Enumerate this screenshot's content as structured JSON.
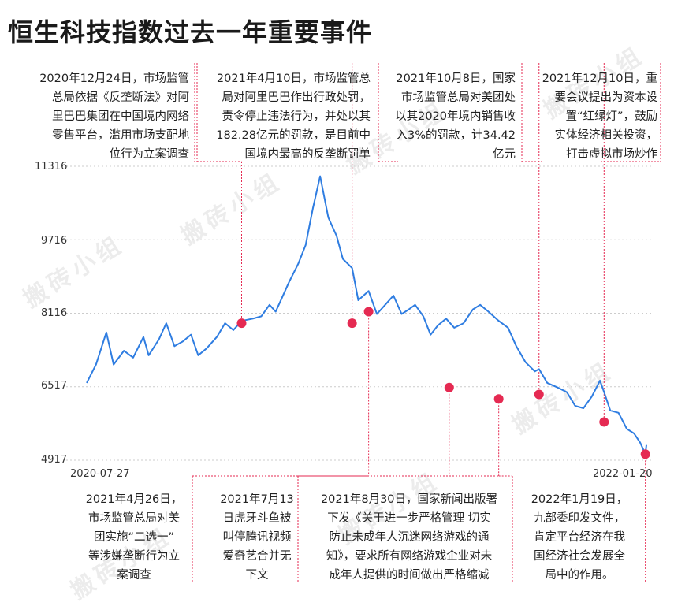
{
  "title": "恒生科技指数过去一年重要事件",
  "watermark": "搬砖小组",
  "colors": {
    "line": "#2f7de1",
    "marker": "#e52a52",
    "guide": "#e52a52",
    "grid": "#cccccc",
    "text": "#222222"
  },
  "chart_data": {
    "type": "line",
    "title": "恒生科技指数过去一年重要事件",
    "x_start": "2020-07-27",
    "x_end": "2022-01-20",
    "y_ticks": [
      4917,
      6517,
      8116,
      9716,
      11316
    ],
    "ylim": [
      4917,
      11316
    ],
    "x_tick_labels": [
      "2020-07-27",
      "2022-01-20"
    ],
    "series": [
      {
        "dates": [
          "2020-07-27",
          "2020-08-05",
          "2020-08-15",
          "2020-08-22",
          "2020-09-01",
          "2020-09-10",
          "2020-09-20",
          "2020-09-25",
          "2020-10-05",
          "2020-10-12",
          "2020-10-20",
          "2020-10-28",
          "2020-11-05",
          "2020-11-12",
          "2020-11-20",
          "2020-11-30",
          "2020-12-08",
          "2020-12-16",
          "2020-12-24",
          "2021-01-04",
          "2021-01-12",
          "2021-01-20",
          "2021-01-26",
          "2021-02-01",
          "2021-02-08",
          "2021-02-17",
          "2021-02-24",
          "2021-03-03",
          "2021-03-10",
          "2021-03-18",
          "2021-03-26",
          "2021-04-01",
          "2021-04-10",
          "2021-04-16",
          "2021-04-26",
          "2021-05-04",
          "2021-05-12",
          "2021-05-20",
          "2021-05-28",
          "2021-06-04",
          "2021-06-10",
          "2021-06-18",
          "2021-06-25",
          "2021-07-02",
          "2021-07-10",
          "2021-07-18",
          "2021-07-27",
          "2021-08-05",
          "2021-08-12",
          "2021-08-20",
          "2021-08-30",
          "2021-09-08",
          "2021-09-16",
          "2021-09-25",
          "2021-10-04",
          "2021-10-08",
          "2021-10-16",
          "2021-10-26",
          "2021-11-04",
          "2021-11-12",
          "2021-11-20",
          "2021-11-28",
          "2021-12-06",
          "2021-12-10",
          "2021-12-16",
          "2021-12-24",
          "2022-01-01",
          "2022-01-08",
          "2022-01-14",
          "2022-01-19",
          "2022-01-20"
        ],
        "values": [
          6600,
          7000,
          7700,
          7000,
          7300,
          7150,
          7600,
          7200,
          7550,
          7900,
          7400,
          7500,
          7650,
          7200,
          7350,
          7600,
          7900,
          7750,
          7950,
          8000,
          8050,
          8300,
          8150,
          8450,
          8800,
          9200,
          9600,
          10400,
          11100,
          10200,
          9800,
          9300,
          9100,
          8400,
          8600,
          8100,
          8300,
          8500,
          8100,
          8200,
          8300,
          8050,
          7650,
          7850,
          8000,
          7800,
          7900,
          8200,
          8300,
          8150,
          7950,
          7800,
          7400,
          7050,
          6850,
          6900,
          6600,
          6500,
          6400,
          6100,
          6050,
          6300,
          6650,
          6400,
          6000,
          5950,
          5600,
          5500,
          5300,
          5050,
          5250
        ]
      }
    ],
    "markers": [
      {
        "date": "2020-12-24",
        "value": 7900
      },
      {
        "date": "2021-04-10",
        "value": 7900
      },
      {
        "date": "2021-04-26",
        "value": 8150
      },
      {
        "date": "2021-07-13",
        "value": 6500
      },
      {
        "date": "2021-08-30",
        "value": 6250
      },
      {
        "date": "2021-10-08",
        "value": 6350
      },
      {
        "date": "2021-12-10",
        "value": 5750
      },
      {
        "date": "2022-01-19",
        "value": 5050
      }
    ]
  },
  "annotations_top": [
    {
      "text": "2020年12月24日，市场监管\n总局依据《反垄断法》对阿\n里巴巴集团在中国境内网络\n零售平台，滥用市场支配地\n位行为立案调查"
    },
    {
      "text": "2021年4月10日，市场监管总\n局对阿里巴巴作出行政处罚，\n责令停止违法行为，并处以其\n182.28亿元的罚款，是目前中\n国境内最高的反垄断罚单"
    },
    {
      "text": "2021年10月8日，国家\n市场监管总局对美团处\n以其2020年境内销售收\n入3%的罚款，计34.42\n亿元"
    },
    {
      "text": "2021年12月10日，重\n要会议提出为资本设\n置“红绿灯”，鼓励\n实体经济相关投资，\n打击虚拟市场炒作"
    }
  ],
  "annotations_bottom": [
    {
      "text": "2021年4月26日，\n市场监管总局对美\n团实施“二选一”\n等涉嫌垄断行为立\n案调查"
    },
    {
      "text": "2021年7月13\n日虎牙斗鱼被\n叫停腾讯视频\n爱奇艺合并无\n下文"
    },
    {
      "text": "2021年8月30日，国家新闻出版署\n下发《关于进一步严格管理 切实\n防止未成年人沉迷网络游戏的通\n知》，要求所有网络游戏企业对未\n成年人提供的时间做出严格缩减"
    },
    {
      "text": "2022年1月19日，\n九部委印发文件，\n肯定平台经济在我\n国经济社会发展全\n局中的作用。"
    }
  ]
}
